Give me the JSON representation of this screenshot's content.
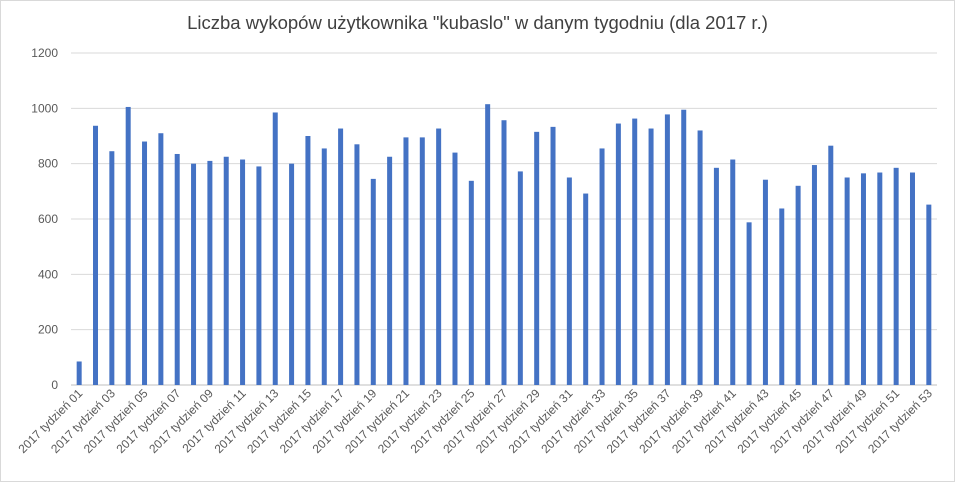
{
  "chart_data": {
    "type": "bar",
    "title": "Liczba wykopów użytkownika \"kubaslo\" w danym tygodniu (dla 2017 r.)",
    "xlabel": "",
    "ylabel": "",
    "ylim": [
      0,
      1200
    ],
    "yticks": [
      0,
      200,
      400,
      600,
      800,
      1000,
      1200
    ],
    "grid": true,
    "legend": "none",
    "bar_color": "#4472c4",
    "categories": [
      "2017 tydzień 01",
      "2017 tydzień 02",
      "2017 tydzień 03",
      "2017 tydzień 04",
      "2017 tydzień 05",
      "2017 tydzień 06",
      "2017 tydzień 07",
      "2017 tydzień 08",
      "2017 tydzień 09",
      "2017 tydzień 10",
      "2017 tydzień 11",
      "2017 tydzień 12",
      "2017 tydzień 13",
      "2017 tydzień 14",
      "2017 tydzień 15",
      "2017 tydzień 16",
      "2017 tydzień 17",
      "2017 tydzień 18",
      "2017 tydzień 19",
      "2017 tydzień 20",
      "2017 tydzień 21",
      "2017 tydzień 22",
      "2017 tydzień 23",
      "2017 tydzień 24",
      "2017 tydzień 25",
      "2017 tydzień 26",
      "2017 tydzień 27",
      "2017 tydzień 28",
      "2017 tydzień 29",
      "2017 tydzień 30",
      "2017 tydzień 31",
      "2017 tydzień 32",
      "2017 tydzień 33",
      "2017 tydzień 34",
      "2017 tydzień 35",
      "2017 tydzień 36",
      "2017 tydzień 37",
      "2017 tydzień 38",
      "2017 tydzień 39",
      "2017 tydzień 40",
      "2017 tydzień 41",
      "2017 tydzień 42",
      "2017 tydzień 43",
      "2017 tydzień 44",
      "2017 tydzień 45",
      "2017 tydzień 46",
      "2017 tydzień 47",
      "2017 tydzień 48",
      "2017 tydzień 49",
      "2017 tydzień 50",
      "2017 tydzień 51",
      "2017 tydzień 52",
      "2017 tydzień 53"
    ],
    "visible_tick_labels": [
      "2017 tydzień 01",
      "2017 tydzień 03",
      "2017 tydzień 05",
      "2017 tydzień 07",
      "2017 tydzień 09",
      "2017 tydzień 11",
      "2017 tydzień 13",
      "2017 tydzień 15",
      "2017 tydzień 17",
      "2017 tydzień 19",
      "2017 tydzień 21",
      "2017 tydzień 23",
      "2017 tydzień 25",
      "2017 tydzień 27",
      "2017 tydzień 29",
      "2017 tydzień 31",
      "2017 tydzień 33",
      "2017 tydzień 35",
      "2017 tydzień 37",
      "2017 tydzień 39",
      "2017 tydzień 41",
      "2017 tydzień 43",
      "2017 tydzień 45",
      "2017 tydzień 47",
      "2017 tydzień 49",
      "2017 tydzień 51",
      "2017 tydzień 53"
    ],
    "values": [
      85,
      937,
      845,
      1005,
      880,
      910,
      835,
      800,
      810,
      825,
      815,
      790,
      985,
      800,
      900,
      855,
      927,
      870,
      745,
      825,
      895,
      895,
      927,
      840,
      738,
      1015,
      957,
      772,
      915,
      933,
      750,
      692,
      855,
      945,
      963,
      927,
      978,
      995,
      920,
      785,
      815,
      588,
      742,
      638,
      720,
      795,
      865,
      750,
      765,
      768,
      785,
      768,
      652
    ]
  }
}
